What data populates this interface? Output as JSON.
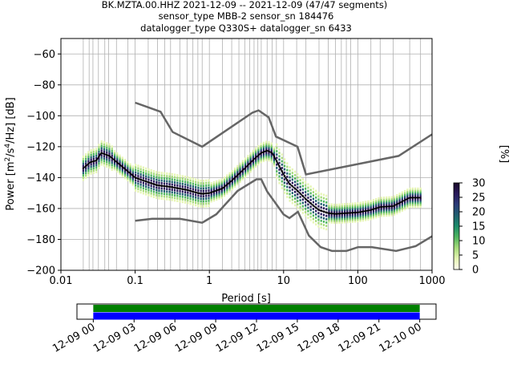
{
  "title_lines": [
    "BK.MZTA.00.HHZ   2021-12-09 -- 2021-12-09  (47/47 segments)",
    "sensor_type MBB-2 sensor_sn 184476",
    "datalogger_type Q330S+ datalogger_sn 6433"
  ],
  "chart_data": [
    {
      "type": "heatmap",
      "xlabel": "Period [s]",
      "ylabel_parts": [
        "Power [m",
        "2",
        "/s",
        "4",
        "/Hz] [dB]"
      ],
      "x_scale": "log",
      "xlim": [
        0.01,
        1000
      ],
      "ylim": [
        -200,
        -50
      ],
      "xticks": [
        {
          "value": 0.01,
          "label": "0.01"
        },
        {
          "value": 0.1,
          "label": "0.1"
        },
        {
          "value": 1,
          "label": "1"
        },
        {
          "value": 10,
          "label": "10"
        },
        {
          "value": 100,
          "label": "100"
        },
        {
          "value": 1000,
          "label": "1000"
        }
      ],
      "yticks": [
        {
          "value": -60,
          "label": "−60"
        },
        {
          "value": -80,
          "label": "−80"
        },
        {
          "value": -100,
          "label": "−100"
        },
        {
          "value": -120,
          "label": "−120"
        },
        {
          "value": -140,
          "label": "−140"
        },
        {
          "value": -160,
          "label": "−160"
        },
        {
          "value": -180,
          "label": "−180"
        },
        {
          "value": -200,
          "label": "−200"
        }
      ],
      "grid": true,
      "grid_periods": [
        0.02,
        0.024,
        0.027,
        0.032,
        0.039,
        0.044,
        0.056,
        0.08,
        0.1,
        0.15,
        0.2,
        0.25,
        0.3,
        0.4,
        0.5,
        0.6,
        0.7,
        0.8,
        1,
        1.5,
        2,
        2.5,
        3,
        3.5,
        4,
        4.5,
        5,
        6,
        7,
        8,
        10,
        15,
        20,
        30,
        40,
        50,
        60,
        70,
        80,
        100,
        150,
        200,
        300,
        500,
        700,
        1000
      ],
      "mean_psd": {
        "period": [
          0.02,
          0.025,
          0.03,
          0.035,
          0.045,
          0.06,
          0.08,
          0.1,
          0.15,
          0.2,
          0.3,
          0.5,
          0.7,
          0.8,
          1,
          1.5,
          2,
          3,
          4,
          5,
          6,
          7,
          8,
          10,
          12,
          15,
          20,
          25,
          30,
          40,
          50,
          70,
          100,
          150,
          200,
          300,
          500,
          700
        ],
        "power": [
          -134,
          -130,
          -129,
          -124,
          -126,
          -131,
          -136,
          -140,
          -143,
          -145,
          -146,
          -148,
          -150,
          -150.5,
          -150,
          -147,
          -142,
          -134,
          -128,
          -124,
          -122.5,
          -124,
          -129,
          -138,
          -144,
          -148,
          -154,
          -158,
          -161,
          -163,
          -163.5,
          -163,
          -162.5,
          -161,
          -159,
          -158.5,
          -153,
          -153
        ]
      },
      "noise_models": [
        {
          "name": "high",
          "period": [
            0.1,
            0.22,
            0.32,
            0.8,
            3.8,
            4.6,
            6.3,
            7.9,
            15.4,
            20,
            354.8,
            1000
          ],
          "power": [
            -91.5,
            -97.4,
            -110.5,
            -120,
            -98,
            -96.5,
            -101,
            -113.5,
            -120,
            -138,
            -126,
            -112
          ]
        },
        {
          "name": "low",
          "period": [
            0.1,
            0.17,
            0.4,
            0.8,
            1.24,
            2.4,
            4.3,
            5,
            6,
            10,
            12,
            15.6,
            21.9,
            31.6,
            45,
            70,
            101,
            154,
            328,
            600,
            1000
          ],
          "power": [
            -168,
            -166.7,
            -166.7,
            -169.2,
            -163.7,
            -148.6,
            -141.1,
            -141.1,
            -149,
            -163.8,
            -166.2,
            -162.1,
            -177.5,
            -185,
            -187.5,
            -187.5,
            -185,
            -185,
            -187.5,
            -184.4,
            -178
          ]
        }
      ],
      "colorbar": {
        "label": "[%]",
        "min": 0,
        "max": 30,
        "ticks": [
          {
            "value": 0,
            "label": "0"
          },
          {
            "value": 5,
            "label": "5"
          },
          {
            "value": 10,
            "label": "10"
          },
          {
            "value": 15,
            "label": "15"
          },
          {
            "value": 20,
            "label": "20"
          },
          {
            "value": 25,
            "label": "25"
          },
          {
            "value": 30,
            "label": "30"
          }
        ],
        "colors": [
          "#fffff0",
          "#e6f5b4",
          "#a6db7a",
          "#4fb55e",
          "#1b8c6a",
          "#206070",
          "#2b3b78",
          "#2a1a5c",
          "#1a0a2a"
        ]
      }
    },
    {
      "type": "timeline",
      "tick_labels": [
        "12-09 00",
        "12-09 03",
        "12-09 06",
        "12-09 09",
        "12-09 12",
        "12-09 15",
        "12-09 18",
        "12-09 21",
        "12-10 00"
      ],
      "bands": [
        {
          "color": "#008000",
          "start_hour": 0,
          "end_hour": 24
        },
        {
          "color": "#0000ff",
          "start_hour": 0,
          "end_hour": 24
        }
      ],
      "axis_range_hours": [
        -1.2,
        25.2
      ]
    }
  ]
}
